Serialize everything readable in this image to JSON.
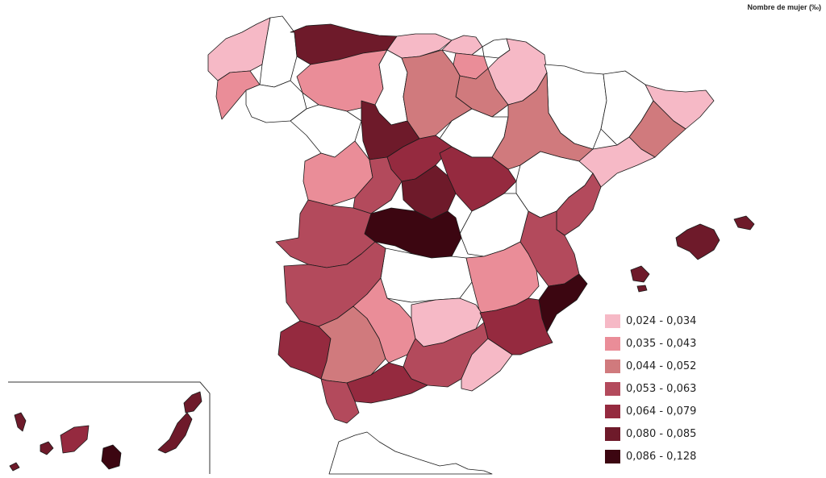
{
  "map": {
    "title": "Nombre de mujer (‰)",
    "legend": [
      {
        "label": "0,024 - 0,034",
        "color": "#f6b9c6"
      },
      {
        "label": "0,035 - 0,043",
        "color": "#ea8d98"
      },
      {
        "label": "0,044 - 0,052",
        "color": "#d07a7d"
      },
      {
        "label": "0,053 - 0,063",
        "color": "#b34a5c"
      },
      {
        "label": "0,064 - 0,079",
        "color": "#952a3f"
      },
      {
        "label": "0,080 - 0,085",
        "color": "#6e1a2a"
      },
      {
        "label": "0,086 - 0,128",
        "color": "#3c0611"
      }
    ],
    "no_data_color": "#ffffff"
  }
}
